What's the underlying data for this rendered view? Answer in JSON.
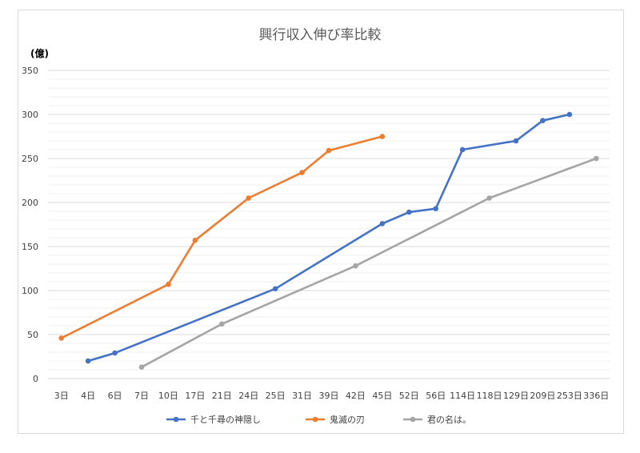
{
  "chart_data": {
    "type": "line",
    "title": "興行収入伸び率比較",
    "ylabel": "(億)",
    "xlabel": "",
    "ylim": [
      0,
      350
    ],
    "yticks": [
      0,
      50,
      100,
      150,
      200,
      250,
      300,
      350
    ],
    "categories": [
      "3日",
      "4日",
      "6日",
      "7日",
      "10日",
      "17日",
      "21日",
      "24日",
      "25日",
      "31日",
      "39日",
      "42日",
      "45日",
      "52日",
      "56日",
      "114日",
      "118日",
      "129日",
      "209日",
      "253日",
      "336日"
    ],
    "grid": true,
    "legend_position": "bottom",
    "series": [
      {
        "name": "千と千尋の神隠し",
        "color": "#4472c4",
        "points": [
          {
            "x": "4日",
            "y": 20
          },
          {
            "x": "6日",
            "y": 29
          },
          {
            "x": "25日",
            "y": 102
          },
          {
            "x": "45日",
            "y": 176
          },
          {
            "x": "52日",
            "y": 189
          },
          {
            "x": "56日",
            "y": 193
          },
          {
            "x": "114日",
            "y": 260
          },
          {
            "x": "129日",
            "y": 270
          },
          {
            "x": "209日",
            "y": 293
          },
          {
            "x": "253日",
            "y": 300
          }
        ]
      },
      {
        "name": "鬼滅の刃",
        "color": "#ed7d31",
        "points": [
          {
            "x": "3日",
            "y": 46
          },
          {
            "x": "10日",
            "y": 107
          },
          {
            "x": "17日",
            "y": 157
          },
          {
            "x": "24日",
            "y": 205
          },
          {
            "x": "31日",
            "y": 234
          },
          {
            "x": "39日",
            "y": 259
          },
          {
            "x": "45日",
            "y": 275
          }
        ]
      },
      {
        "name": "君の名は。",
        "color": "#a5a5a5",
        "points": [
          {
            "x": "7日",
            "y": 13
          },
          {
            "x": "21日",
            "y": 62
          },
          {
            "x": "42日",
            "y": 128
          },
          {
            "x": "118日",
            "y": 205
          },
          {
            "x": "336日",
            "y": 250
          }
        ]
      }
    ]
  }
}
